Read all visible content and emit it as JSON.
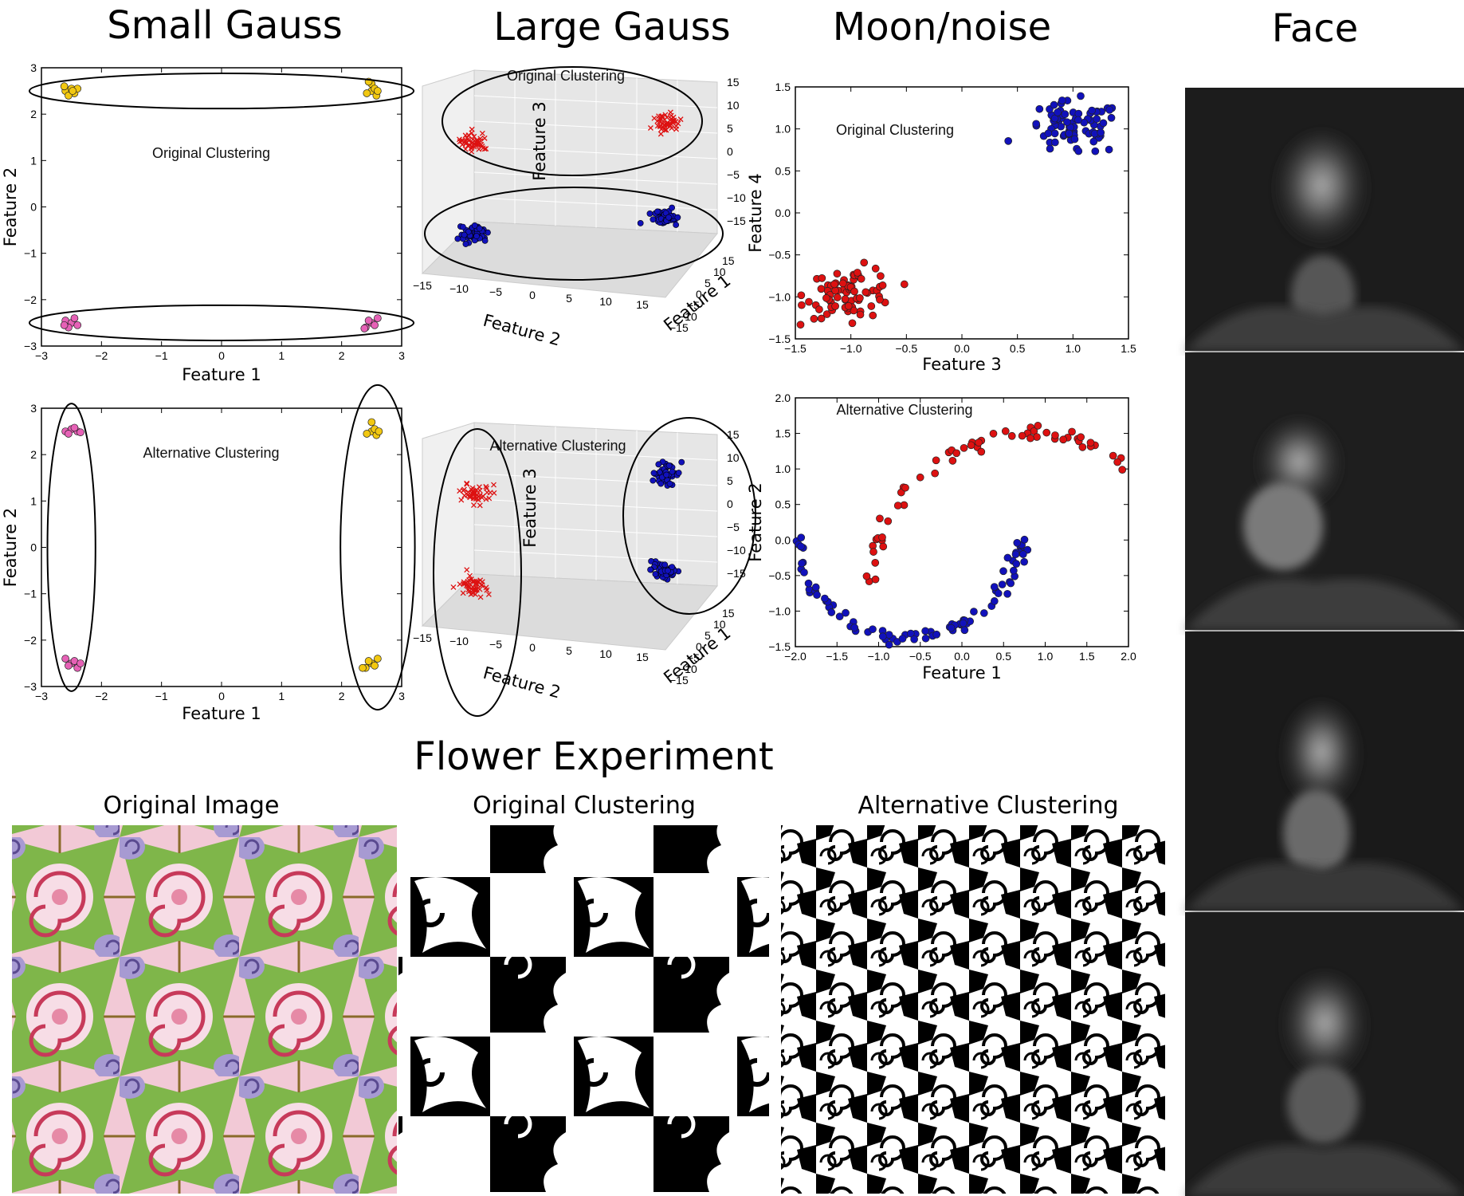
{
  "headings": {
    "small_gauss": "Small Gauss",
    "large_gauss": "Large Gauss",
    "moon_noise": "Moon/noise",
    "face": "Face",
    "flower": "Flower Experiment"
  },
  "flower_titles": [
    "Original Image",
    "Original Clustering",
    "Alternative Clustering"
  ],
  "colors": {
    "yellow": "#f2c811",
    "pink": "#e661b6",
    "red": "#dd1111",
    "blue": "#1111bb",
    "face_bg": "#1c1c1c"
  },
  "chart_data": [
    {
      "id": "small_gauss_original",
      "type": "scatter",
      "annotation": "Original Clustering",
      "xlabel": "Feature 1",
      "ylabel": "Feature 2",
      "xlim": [
        -3,
        3
      ],
      "ylim": [
        -3,
        3
      ],
      "xticks": [
        "−3",
        "−2",
        "−1",
        "0",
        "1",
        "2",
        "3"
      ],
      "yticks": [
        "−3",
        "−2",
        "−1",
        "0",
        "1",
        "2",
        "3"
      ],
      "series": [
        {
          "color": "yellow",
          "points": [
            [
              -2.6,
              2.5
            ],
            [
              -2.5,
              2.55
            ],
            [
              -2.45,
              2.45
            ],
            [
              -2.55,
              2.4
            ],
            [
              -2.4,
              2.55
            ],
            [
              -2.62,
              2.6
            ],
            [
              -2.48,
              2.5
            ],
            [
              2.5,
              2.65
            ],
            [
              2.5,
              2.5
            ],
            [
              2.58,
              2.4
            ],
            [
              2.42,
              2.45
            ],
            [
              2.55,
              2.55
            ],
            [
              2.45,
              2.7
            ],
            [
              2.6,
              2.5
            ]
          ]
        },
        {
          "color": "pink",
          "points": [
            [
              -2.6,
              -2.45
            ],
            [
              -2.5,
              -2.5
            ],
            [
              -2.4,
              -2.55
            ],
            [
              -2.55,
              -2.6
            ],
            [
              -2.45,
              -2.4
            ],
            [
              -2.62,
              -2.55
            ],
            [
              2.6,
              -2.4
            ],
            [
              2.5,
              -2.5
            ],
            [
              2.4,
              -2.6
            ],
            [
              2.55,
              -2.55
            ],
            [
              2.45,
              -2.45
            ],
            [
              2.38,
              -2.62
            ]
          ]
        }
      ],
      "ellipses": [
        [
          0,
          2.5,
          3.2,
          0.38
        ],
        [
          0,
          -2.5,
          3.2,
          0.38
        ]
      ]
    },
    {
      "id": "small_gauss_alternative",
      "type": "scatter",
      "annotation": "Alternative Clustering",
      "xlabel": "Feature 1",
      "ylabel": "Feature 2",
      "xlim": [
        -3,
        3
      ],
      "ylim": [
        -3,
        3
      ],
      "xticks": [
        "−3",
        "−2",
        "−1",
        "0",
        "1",
        "2",
        "3"
      ],
      "yticks": [
        "−3",
        "−2",
        "−1",
        "0",
        "1",
        "2",
        "3"
      ],
      "series": [
        {
          "color": "pink",
          "points": [
            [
              -2.6,
              2.5
            ],
            [
              -2.5,
              2.55
            ],
            [
              -2.4,
              2.5
            ],
            [
              -2.55,
              2.45
            ],
            [
              -2.45,
              2.58
            ],
            [
              -2.35,
              2.48
            ],
            [
              -2.6,
              -2.4
            ],
            [
              -2.5,
              -2.5
            ],
            [
              -2.4,
              -2.6
            ],
            [
              -2.55,
              -2.55
            ],
            [
              -2.45,
              -2.45
            ],
            [
              -2.35,
              -2.5
            ]
          ]
        },
        {
          "color": "yellow",
          "points": [
            [
              2.5,
              2.7
            ],
            [
              2.5,
              2.5
            ],
            [
              2.58,
              2.42
            ],
            [
              2.42,
              2.45
            ],
            [
              2.55,
              2.55
            ],
            [
              2.62,
              2.5
            ],
            [
              2.6,
              -2.4
            ],
            [
              2.5,
              -2.5
            ],
            [
              2.4,
              -2.6
            ],
            [
              2.55,
              -2.55
            ],
            [
              2.45,
              -2.45
            ],
            [
              2.35,
              -2.6
            ]
          ]
        }
      ],
      "ellipses": [
        [
          -2.5,
          0,
          0.4,
          3.1
        ],
        [
          2.6,
          0,
          0.62,
          3.5
        ]
      ]
    },
    {
      "id": "large_gauss_original",
      "type": "scatter3d",
      "annotation": "Original Clustering",
      "xlabel": "Feature 1",
      "ylabel": "Feature 2",
      "zlabel": "Feature 3",
      "xticks": [
        "−15",
        "−10",
        "−5",
        "0",
        "5",
        "10",
        "15"
      ],
      "yticks": [
        "−15",
        "−10",
        "−5",
        "0",
        "5",
        "10",
        "15"
      ],
      "zticks": [
        "−15",
        "−10",
        "−5",
        "0",
        "5",
        "10",
        "15"
      ],
      "clusters": [
        {
          "marker": "x",
          "color": "red",
          "label_pos": "upper-left"
        },
        {
          "marker": "x",
          "color": "red",
          "label_pos": "upper-right"
        },
        {
          "marker": "o",
          "color": "blue",
          "label_pos": "lower-left"
        },
        {
          "marker": "o",
          "color": "blue",
          "label_pos": "lower-right"
        }
      ]
    },
    {
      "id": "large_gauss_alternative",
      "type": "scatter3d",
      "annotation": "Alternative Clustering",
      "xlabel": "Feature 1",
      "ylabel": "Feature 2",
      "zlabel": "Feature 3",
      "xticks": [
        "−15",
        "−10",
        "−5",
        "0",
        "5",
        "10",
        "15"
      ],
      "yticks": [
        "−15",
        "−10",
        "−5",
        "0",
        "5",
        "10",
        "15"
      ],
      "zticks": [
        "−15",
        "−10",
        "−5",
        "0",
        "5",
        "10",
        "15"
      ],
      "clusters": [
        {
          "marker": "x",
          "color": "red",
          "label_pos": "upper-left"
        },
        {
          "marker": "x",
          "color": "red",
          "label_pos": "lower-left"
        },
        {
          "marker": "o",
          "color": "blue",
          "label_pos": "upper-right"
        },
        {
          "marker": "o",
          "color": "blue",
          "label_pos": "lower-right"
        }
      ]
    },
    {
      "id": "moon_original",
      "type": "scatter",
      "annotation": "Original Clustering",
      "xlabel": "Feature 3",
      "ylabel": "Feature 4",
      "xlim": [
        -1.5,
        1.5
      ],
      "ylim": [
        -1.5,
        1.5
      ],
      "xticks": [
        "−1.5",
        "−1.0",
        "−0.5",
        "0.0",
        "0.5",
        "1.0",
        "1.5"
      ],
      "yticks": [
        "−1.5",
        "−1.0",
        "−0.5",
        "0.0",
        "0.5",
        "1.0",
        "1.5"
      ],
      "series": [
        {
          "color": "blue",
          "center": [
            1.0,
            1.0
          ],
          "spread": [
            0.22,
            0.16
          ],
          "n": 80
        },
        {
          "color": "red",
          "center": [
            -1.0,
            -0.95
          ],
          "spread": [
            0.2,
            0.15
          ],
          "n": 80
        }
      ]
    },
    {
      "id": "moon_alternative",
      "type": "scatter",
      "annotation": "Alternative Clustering",
      "xlabel": "Feature 1",
      "ylabel": "Feature 2",
      "xlim": [
        -2.0,
        2.0
      ],
      "ylim": [
        -1.5,
        2.0
      ],
      "xticks": [
        "−2.0",
        "−1.5",
        "−1.0",
        "−0.5",
        "0.0",
        "0.5",
        "1.0",
        "1.5",
        "2.0"
      ],
      "yticks": [
        "−1.5",
        "−1.0",
        "−0.5",
        "0.0",
        "0.5",
        "1.0",
        "1.5",
        "2.0"
      ],
      "series": [
        {
          "color": "red",
          "curve": "upper-moon",
          "n": 90
        },
        {
          "color": "blue",
          "curve": "lower-moon",
          "n": 90
        }
      ]
    }
  ]
}
